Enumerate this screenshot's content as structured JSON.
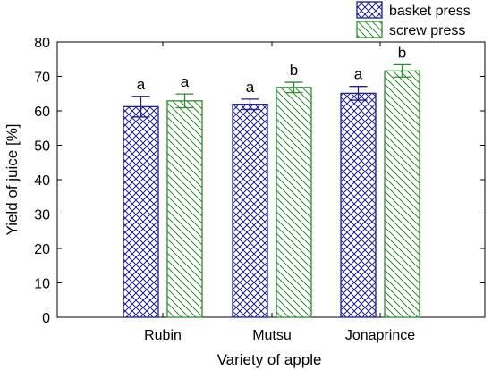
{
  "chart_data": {
    "type": "bar",
    "xlabel": "Variety of apple",
    "ylabel": "Yield of juice [%]",
    "ylim": [
      0,
      80
    ],
    "yticks": [
      0,
      10,
      20,
      30,
      40,
      50,
      60,
      70,
      80
    ],
    "categories": [
      "Rubin",
      "Mutsu",
      "Jonaprince"
    ],
    "legend_position": "top-right",
    "grid": false,
    "series": [
      {
        "name": "basket press",
        "color": "#1f1f8f",
        "pattern": "crosshatch",
        "values": [
          61.2,
          61.9,
          65.1
        ],
        "error": [
          3.0,
          1.5,
          2.0
        ],
        "significance": [
          "a",
          "a",
          "a"
        ]
      },
      {
        "name": "screw press",
        "color": "#2e8b2e",
        "pattern": "diagonal",
        "values": [
          62.9,
          66.8,
          71.6
        ],
        "error": [
          2.0,
          1.5,
          1.8
        ],
        "significance": [
          "a",
          "b",
          "b"
        ]
      }
    ]
  }
}
